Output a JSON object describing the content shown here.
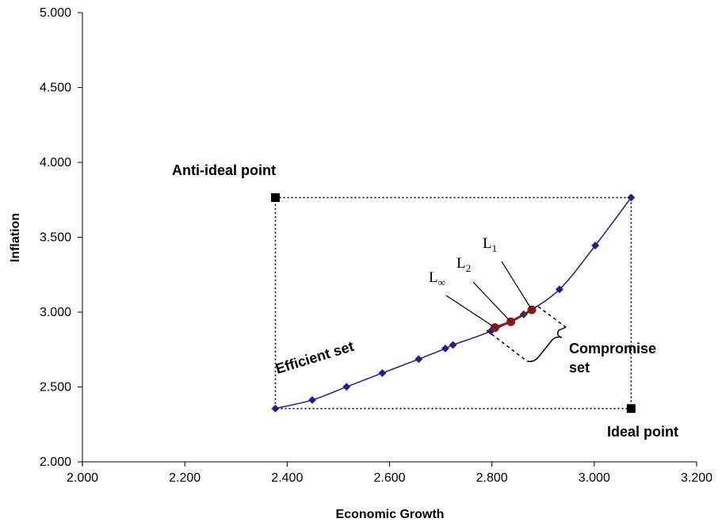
{
  "chart_data": {
    "type": "scatter",
    "xlabel": "Economic Growth",
    "ylabel": "Inflation",
    "xlim": [
      2.0,
      3.2
    ],
    "ylim": [
      2.0,
      5.0
    ],
    "xticks": [
      2.0,
      2.2,
      2.4,
      2.6,
      2.8,
      3.0,
      3.2
    ],
    "yticks": [
      2.0,
      2.5,
      3.0,
      3.5,
      4.0,
      4.5,
      5.0
    ],
    "x_tick_labels": [
      "2.000",
      "2.200",
      "2.400",
      "2.600",
      "2.800",
      "3.000",
      "3.200"
    ],
    "y_tick_labels": [
      "2.000",
      "2.500",
      "3.000",
      "3.500",
      "4.000",
      "4.500",
      "5.000"
    ],
    "grid": false,
    "colors": {
      "efficient": "#1f1f8f",
      "compromise": "#8b1a1a",
      "reference": "#000000"
    },
    "series": [
      {
        "name": "Efficient set",
        "x": [
          2.377,
          2.449,
          2.516,
          2.586,
          2.657,
          2.709,
          2.724,
          2.798,
          2.862,
          2.932,
          3.002,
          3.072
        ],
        "y": [
          2.356,
          2.413,
          2.501,
          2.593,
          2.686,
          2.757,
          2.781,
          2.873,
          2.985,
          3.152,
          3.445,
          3.765
        ]
      },
      {
        "name": "Compromise set",
        "x": [
          2.806,
          2.837,
          2.878
        ],
        "y": [
          2.897,
          2.935,
          3.015
        ]
      },
      {
        "name": "Ideal / Anti-ideal",
        "x": [
          3.072,
          2.377
        ],
        "y": [
          2.356,
          3.765
        ]
      }
    ],
    "annotations": {
      "anti_ideal": "Anti-ideal point",
      "ideal": "Ideal point",
      "efficient": "Efficient set",
      "compromise_1": "Compromise",
      "compromise_2": "set",
      "l1_base": "L",
      "l1_sub": "1",
      "l2_base": "L",
      "l2_sub": "2",
      "linf_base": "L",
      "linf_sub": "∞"
    }
  }
}
